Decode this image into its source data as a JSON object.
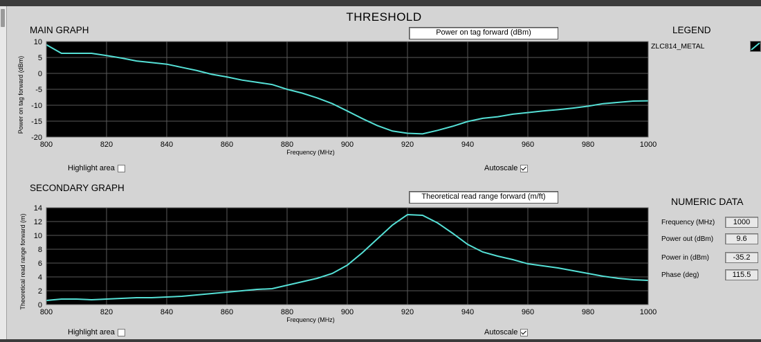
{
  "page_title": "THRESHOLD",
  "main": {
    "section_title": "MAIN GRAPH",
    "selector": "Power on tag forward (dBm)",
    "highlight_label": "Highlight area",
    "highlight_checked": false,
    "autoscale_label": "Autoscale",
    "autoscale_checked": true
  },
  "secondary": {
    "section_title": "SECONDARY GRAPH",
    "selector": "Theoretical read range forward (m/ft)",
    "highlight_label": "Highlight area",
    "highlight_checked": false,
    "autoscale_label": "Autoscale",
    "autoscale_checked": true
  },
  "legend": {
    "title": "LEGEND",
    "items": [
      {
        "name": "ZLC814_METAL",
        "color": "#55e0d6"
      }
    ]
  },
  "numeric": {
    "title": "NUMERIC DATA",
    "rows": [
      {
        "label": "Frequency (MHz)",
        "value": "1000"
      },
      {
        "label": "Power out (dBm)",
        "value": "9.6"
      },
      {
        "label": "Power in (dBm)",
        "value": "-35.2"
      },
      {
        "label": "Phase (deg)",
        "value": "115.5"
      }
    ]
  },
  "colors": {
    "plot_bg": "#000000",
    "grid": "#5a5a5a",
    "line": "#55e0d6"
  },
  "chart_data": [
    {
      "type": "line",
      "xlabel": "Frequency (MHz)",
      "ylabel": "Power on tag forward (dBm)",
      "xlim": [
        800,
        1000
      ],
      "ylim": [
        -20,
        10
      ],
      "xticks": [
        800,
        820,
        840,
        860,
        880,
        900,
        920,
        940,
        960,
        980,
        1000
      ],
      "yticks": [
        10,
        5,
        0,
        -5,
        -10,
        -15,
        -20
      ],
      "grid": true,
      "series": [
        {
          "name": "ZLC814_METAL",
          "x": [
            800,
            805,
            810,
            815,
            820,
            825,
            830,
            835,
            840,
            845,
            850,
            855,
            860,
            865,
            870,
            875,
            880,
            885,
            890,
            895,
            900,
            905,
            910,
            915,
            920,
            925,
            930,
            935,
            940,
            945,
            950,
            955,
            960,
            965,
            970,
            975,
            980,
            985,
            990,
            995,
            1000
          ],
          "y": [
            9.0,
            6.3,
            6.3,
            6.3,
            5.6,
            4.8,
            3.9,
            3.4,
            2.9,
            1.9,
            0.9,
            -0.3,
            -1.1,
            -2.1,
            -2.8,
            -3.5,
            -5.0,
            -6.2,
            -7.7,
            -9.5,
            -11.8,
            -14.2,
            -16.4,
            -18.1,
            -18.8,
            -19.0,
            -17.9,
            -16.6,
            -15.1,
            -14.1,
            -13.6,
            -12.8,
            -12.3,
            -11.8,
            -11.4,
            -10.9,
            -10.3,
            -9.5,
            -9.1,
            -8.7,
            -8.6
          ]
        }
      ]
    },
    {
      "type": "line",
      "xlabel": "Frequency (MHz)",
      "ylabel": "Theoretical read range forward (m)",
      "xlim": [
        800,
        1000
      ],
      "ylim": [
        0,
        14
      ],
      "xticks": [
        800,
        820,
        840,
        860,
        880,
        900,
        920,
        940,
        960,
        980,
        1000
      ],
      "yticks": [
        14,
        12,
        10,
        8,
        6,
        4,
        2,
        0
      ],
      "grid": true,
      "series": [
        {
          "name": "ZLC814_METAL",
          "x": [
            800,
            805,
            810,
            815,
            820,
            825,
            830,
            835,
            840,
            845,
            850,
            855,
            860,
            865,
            870,
            875,
            880,
            885,
            890,
            895,
            900,
            905,
            910,
            915,
            920,
            925,
            930,
            935,
            940,
            945,
            950,
            955,
            960,
            965,
            970,
            975,
            980,
            985,
            990,
            995,
            1000
          ],
          "y": [
            0.6,
            0.8,
            0.8,
            0.7,
            0.8,
            0.9,
            1.0,
            1.0,
            1.1,
            1.2,
            1.4,
            1.6,
            1.8,
            2.0,
            2.2,
            2.3,
            2.8,
            3.3,
            3.8,
            4.5,
            5.7,
            7.5,
            9.5,
            11.5,
            13.0,
            12.9,
            11.8,
            10.3,
            8.7,
            7.6,
            7.0,
            6.5,
            5.9,
            5.6,
            5.3,
            4.9,
            4.5,
            4.1,
            3.8,
            3.6,
            3.5
          ]
        }
      ]
    }
  ]
}
